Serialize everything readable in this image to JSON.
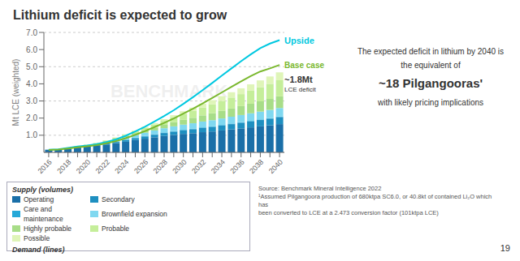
{
  "chart_data": {
    "type": "bar",
    "title": "Lithium deficit is expected to grow",
    "y_label": "Mt LCE (weighted)",
    "categories": [
      "2016",
      null,
      "2018",
      null,
      "2020",
      null,
      "2022",
      null,
      "2024",
      null,
      "2026",
      null,
      "2028",
      null,
      "2030",
      null,
      "2032",
      null,
      "2034",
      null,
      "2036",
      null,
      "2038",
      null,
      "2040"
    ],
    "ylim": [
      0,
      7.0
    ],
    "yticks": [
      {
        "value": 1.0,
        "label": "1.0"
      },
      {
        "value": 2.0,
        "label": "2.0"
      },
      {
        "value": 3.0,
        "label": "3.0"
      },
      {
        "value": 4.0,
        "label": "4.0"
      },
      {
        "value": 5.0,
        "label": "5.0"
      },
      {
        "value": 6.0,
        "label": "6.0"
      },
      {
        "value": 7.0,
        "label": "7.0"
      }
    ],
    "grid": true,
    "stacked": true,
    "legend": "bottom",
    "series": [
      {
        "name": "Operating",
        "type": "bar",
        "color": "#1a6fa8",
        "values": [
          0.15,
          0.17,
          0.22,
          0.28,
          0.33,
          0.38,
          0.46,
          0.54,
          0.62,
          0.72,
          0.8,
          0.88,
          0.96,
          1.02,
          1.08,
          1.12,
          1.18,
          1.22,
          1.28,
          1.34,
          1.4,
          1.46,
          1.52,
          1.58,
          1.65
        ]
      },
      {
        "name": "Secondary",
        "type": "bar",
        "color": "#1e8fc0",
        "values": [
          0.01,
          0.015,
          0.02,
          0.03,
          0.04,
          0.05,
          0.06,
          0.07,
          0.09,
          0.11,
          0.13,
          0.15,
          0.17,
          0.19,
          0.21,
          0.23,
          0.25,
          0.27,
          0.29,
          0.31,
          0.33,
          0.35,
          0.37,
          0.39,
          0.41
        ]
      },
      {
        "name": "Care and maintenance",
        "type": "bar",
        "color": "#25a8d8",
        "values": [
          0.0,
          0.0,
          0.0,
          0.01,
          0.01,
          0.01,
          0.02,
          0.02,
          0.03,
          0.03,
          0.03,
          0.03,
          0.03,
          0.03,
          0.03,
          0.03,
          0.03,
          0.03,
          0.03,
          0.03,
          0.03,
          0.03,
          0.03,
          0.03,
          0.03
        ]
      },
      {
        "name": "Brownfield expansion",
        "type": "bar",
        "color": "#80d8f0",
        "values": [
          0.0,
          0.0,
          0.01,
          0.02,
          0.04,
          0.06,
          0.08,
          0.1,
          0.13,
          0.16,
          0.19,
          0.22,
          0.25,
          0.28,
          0.3,
          0.32,
          0.34,
          0.36,
          0.38,
          0.4,
          0.42,
          0.44,
          0.46,
          0.48,
          0.5
        ]
      },
      {
        "name": "Highly probable",
        "type": "bar",
        "color": "#a8dd88",
        "values": [
          0.0,
          0.0,
          0.0,
          0.01,
          0.02,
          0.03,
          0.05,
          0.07,
          0.09,
          0.11,
          0.14,
          0.17,
          0.2,
          0.24,
          0.28,
          0.32,
          0.36,
          0.4,
          0.44,
          0.48,
          0.52,
          0.56,
          0.6,
          0.64,
          0.68
        ]
      },
      {
        "name": "Probable",
        "type": "bar",
        "color": "#c5ee9a",
        "values": [
          0.0,
          0.0,
          0.0,
          0.0,
          0.01,
          0.02,
          0.03,
          0.05,
          0.07,
          0.1,
          0.14,
          0.18,
          0.23,
          0.28,
          0.34,
          0.4,
          0.46,
          0.52,
          0.58,
          0.64,
          0.7,
          0.76,
          0.82,
          0.88,
          0.94
        ]
      },
      {
        "name": "Possible",
        "type": "bar",
        "color": "#dff5b8",
        "values": [
          0.0,
          0.0,
          0.0,
          0.0,
          0.0,
          0.0,
          0.01,
          0.02,
          0.03,
          0.04,
          0.06,
          0.08,
          0.1,
          0.13,
          0.16,
          0.19,
          0.22,
          0.25,
          0.28,
          0.31,
          0.34,
          0.37,
          0.4,
          0.43,
          0.46
        ]
      },
      {
        "name": "Upside (demand)",
        "type": "line",
        "color": "#00c8e0",
        "values": [
          0.15,
          0.18,
          0.26,
          0.34,
          0.4,
          0.48,
          0.6,
          0.76,
          0.97,
          1.22,
          1.5,
          1.8,
          2.12,
          2.46,
          2.83,
          3.22,
          3.63,
          4.05,
          4.48,
          4.9,
          5.32,
          5.72,
          6.08,
          6.35,
          6.55
        ]
      },
      {
        "name": "Base case (demand)",
        "type": "line",
        "color": "#7ab82e",
        "values": [
          0.14,
          0.17,
          0.23,
          0.3,
          0.36,
          0.43,
          0.53,
          0.66,
          0.83,
          1.02,
          1.24,
          1.48,
          1.72,
          1.98,
          2.26,
          2.55,
          2.86,
          3.18,
          3.5,
          3.82,
          4.14,
          4.45,
          4.72,
          4.9,
          5.1
        ]
      }
    ],
    "annotations": [
      "Upside",
      "Base case",
      "~1.8Mt",
      "LCE deficit",
      "The expected deficit in lithium by 2040 is",
      "the equivalent of",
      "~18 Pilgangooras'",
      "with likely pricing implications",
      "Supply (volumes)",
      "Demand (lines)",
      "Source: Benchmark Mineral Intelligence 2022\n¹Assumed Pilgangoora production of 680ktpa SC6.0, or 40.8kt of contained Li₂O which has\nbeen converted to LCE at a 2.473 conversion factor (101ktpa LCE)",
      "19",
      "BENCHMARK"
    ]
  }
}
